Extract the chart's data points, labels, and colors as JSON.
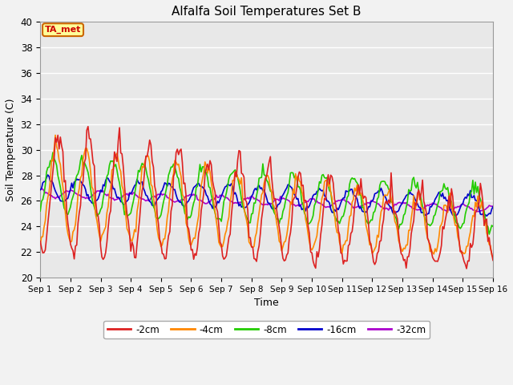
{
  "title": "Alfalfa Soil Temperatures Set B",
  "xlabel": "Time",
  "ylabel": "Soil Temperature (C)",
  "ylim": [
    20,
    40
  ],
  "xlim": [
    0,
    15
  ],
  "xtick_labels": [
    "Sep 1",
    "Sep 2",
    "Sep 3",
    "Sep 4",
    "Sep 5",
    "Sep 6",
    "Sep 7",
    "Sep 8",
    "Sep 9",
    "Sep 10",
    "Sep 11",
    "Sep 12",
    "Sep 13",
    "Sep 14",
    "Sep 15",
    "Sep 16"
  ],
  "ytick_values": [
    20,
    22,
    24,
    26,
    28,
    30,
    32,
    34,
    36,
    38,
    40
  ],
  "annotation": "TA_met",
  "annotation_color": "#cc0000",
  "annotation_bg": "#ffff99",
  "annotation_border": "#cc6600",
  "series": {
    "-2cm": {
      "color": "#dd2222",
      "lw": 1.2
    },
    "-4cm": {
      "color": "#ff8800",
      "lw": 1.2
    },
    "-8cm": {
      "color": "#22cc00",
      "lw": 1.2
    },
    "-16cm": {
      "color": "#0000cc",
      "lw": 1.2
    },
    "-32cm": {
      "color": "#aa00cc",
      "lw": 1.2
    }
  },
  "bg_color": "#e8e8e8",
  "grid_color": "#ffffff",
  "fig_width": 6.4,
  "fig_height": 4.8,
  "dpi": 100
}
